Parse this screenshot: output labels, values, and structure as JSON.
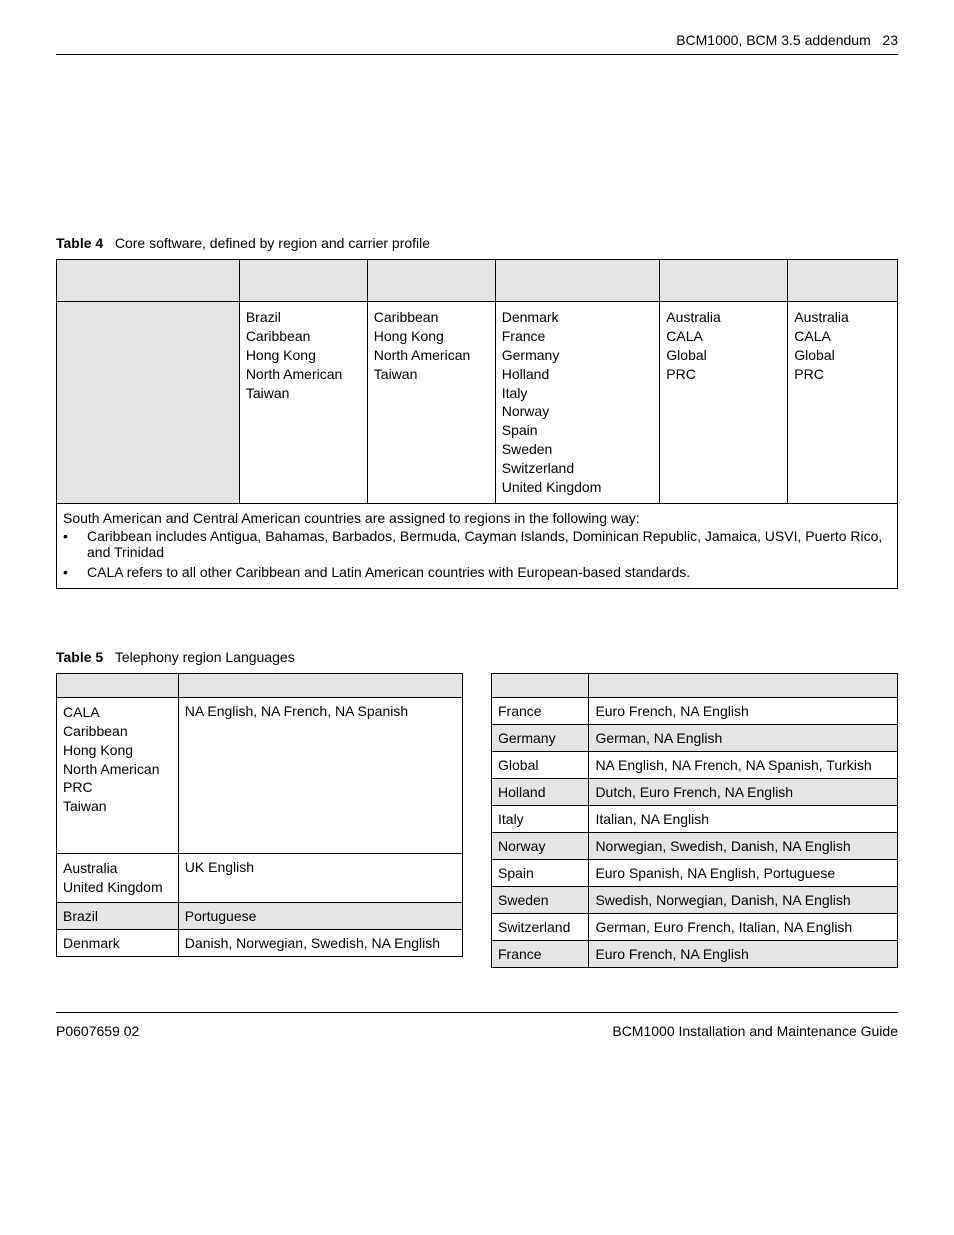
{
  "header": {
    "running_title": "BCM1000, BCM 3.5 addendum",
    "page_number": "23"
  },
  "table4": {
    "caption_label": "Table 4",
    "caption_text": "Core software, defined by region and carrier profile",
    "col_widths_pct": [
      20,
      14,
      14,
      18,
      14,
      12
    ],
    "rows": [
      [
        "",
        "Brazil\nCaribbean\nHong Kong\nNorth American\nTaiwan",
        "Caribbean\nHong Kong\nNorth American\nTaiwan",
        "Denmark\nFrance\nGermany\nHolland\nItaly\nNorway\nSpain\nSweden\nSwitzerland\nUnited Kingdom",
        "Australia\nCALA\nGlobal\nPRC",
        "Australia\nCALA\nGlobal\nPRC"
      ]
    ],
    "note_intro": "South American and Central American countries are assigned to regions in the following way:",
    "note_bullets": [
      "Caribbean includes Antigua, Bahamas, Barbados, Bermuda, Cayman Islands, Dominican Republic, Jamaica, USVI, Puerto Rico, and Trinidad",
      "CALA refers to all other Caribbean and Latin American countries with European-based standards."
    ]
  },
  "table5": {
    "caption_label": "Table 5",
    "caption_text": "Telephony region Languages",
    "left": {
      "col_widths_pct": [
        30,
        70
      ],
      "rows": [
        {
          "region": "CALA\nCaribbean\nHong Kong\nNorth American\nPRC\nTaiwan",
          "langs": "NA English, NA French, NA Spanish",
          "shade": false,
          "tall": true
        },
        {
          "region": "Australia\nUnited Kingdom",
          "langs": "UK English",
          "shade": false
        },
        {
          "region": "Brazil",
          "langs": "Portuguese",
          "shade": true
        },
        {
          "region": "Denmark",
          "langs": "Danish, Norwegian, Swedish, NA English",
          "shade": false
        }
      ]
    },
    "right": {
      "col_widths_pct": [
        24,
        76
      ],
      "rows": [
        {
          "region": "France",
          "langs": "Euro French, NA English",
          "shade": false
        },
        {
          "region": "Germany",
          "langs": "German, NA English",
          "shade": true
        },
        {
          "region": "Global",
          "langs": "NA English, NA French, NA Spanish, Turkish",
          "shade": false
        },
        {
          "region": "Holland",
          "langs": "Dutch, Euro French, NA English",
          "shade": true
        },
        {
          "region": "Italy",
          "langs": "Italian, NA English",
          "shade": false
        },
        {
          "region": "Norway",
          "langs": "Norwegian, Swedish, Danish, NA English",
          "shade": true
        },
        {
          "region": "Spain",
          "langs": "Euro Spanish, NA English, Portuguese",
          "shade": false
        },
        {
          "region": "Sweden",
          "langs": "Swedish, Norwegian, Danish, NA English",
          "shade": true
        },
        {
          "region": "Switzerland",
          "langs": "German, Euro French, Italian, NA English",
          "shade": false
        },
        {
          "region": "France",
          "langs": "Euro French, NA English",
          "shade": true
        }
      ]
    }
  },
  "footer": {
    "left": "P0607659 02",
    "right": "BCM1000 Installation and Maintenance Guide"
  },
  "colors": {
    "shade": "#e5e5e5",
    "text": "#000000",
    "bg": "#ffffff",
    "border": "#000000"
  }
}
